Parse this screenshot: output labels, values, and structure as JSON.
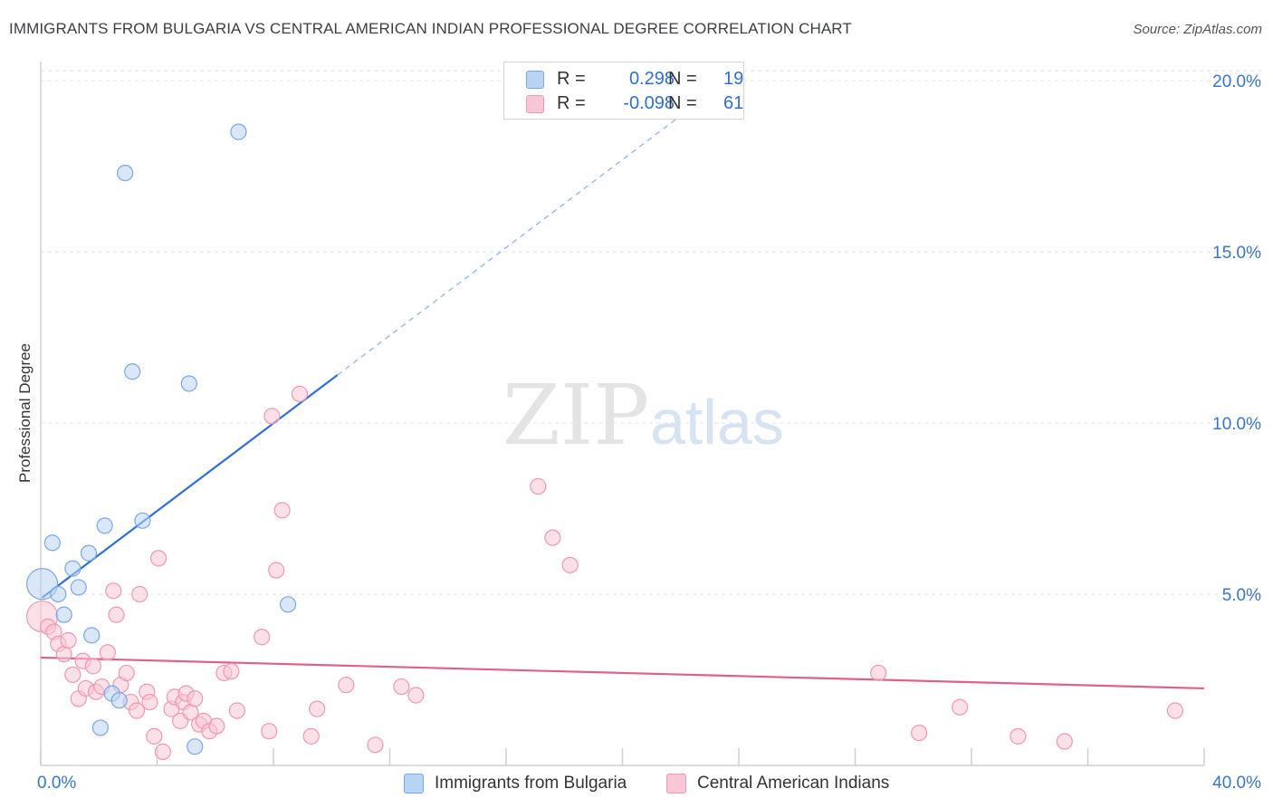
{
  "title": "IMMIGRANTS FROM BULGARIA VS CENTRAL AMERICAN INDIAN PROFESSIONAL DEGREE CORRELATION CHART",
  "source": "Source: ZipAtlas.com",
  "watermark": {
    "zip": "ZIP",
    "atlas": "atlas"
  },
  "legend": {
    "r_label": "R =",
    "n_label": "N =",
    "series1": {
      "r": "0.298",
      "n": "19"
    },
    "series2": {
      "r": "-0.098",
      "n": "61"
    }
  },
  "colors": {
    "blue_fill": "#b9d3f4",
    "blue_stroke": "#7aa7e6",
    "blue_line": "#2f6fd1",
    "pink_fill": "#f8c7d6",
    "pink_stroke": "#ee98b3",
    "pink_line": "#e0608a",
    "tick_text": "#3a75c9"
  },
  "chart_data": {
    "type": "scatter",
    "title": "IMMIGRANTS FROM BULGARIA VS CENTRAL AMERICAN INDIAN PROFESSIONAL DEGREE CORRELATION CHART",
    "xlabel": "",
    "ylabel": "Professional Degree",
    "xlim": [
      0,
      40
    ],
    "ylim": [
      0,
      20.5
    ],
    "x_tick_labels": [
      "0.0%",
      "40.0%"
    ],
    "y_ticks": [
      5,
      10,
      15,
      20
    ],
    "y_tick_labels": [
      "5.0%",
      "10.0%",
      "15.0%",
      "20.0%"
    ],
    "series": [
      {
        "name": "Immigrants from Bulgaria",
        "color": "blue",
        "trend": {
          "x0": 0.05,
          "y0": 4.9,
          "x1": 10.2,
          "y1": 11.4,
          "dash_to_x": 22.2,
          "dash_to_y": 19.1
        },
        "points": [
          {
            "x": 0.05,
            "y": 5.3,
            "big": true
          },
          {
            "x": 0.4,
            "y": 6.5
          },
          {
            "x": 0.6,
            "y": 5.0
          },
          {
            "x": 0.8,
            "y": 4.4
          },
          {
            "x": 1.1,
            "y": 5.75
          },
          {
            "x": 1.3,
            "y": 5.2
          },
          {
            "x": 1.65,
            "y": 6.2
          },
          {
            "x": 1.75,
            "y": 3.8
          },
          {
            "x": 2.05,
            "y": 1.1
          },
          {
            "x": 2.2,
            "y": 7.0
          },
          {
            "x": 2.45,
            "y": 2.1
          },
          {
            "x": 2.7,
            "y": 1.9
          },
          {
            "x": 2.9,
            "y": 17.3
          },
          {
            "x": 3.15,
            "y": 11.5
          },
          {
            "x": 3.5,
            "y": 7.15
          },
          {
            "x": 5.1,
            "y": 11.15
          },
          {
            "x": 5.3,
            "y": 0.55
          },
          {
            "x": 6.8,
            "y": 18.5
          },
          {
            "x": 8.5,
            "y": 4.7
          }
        ]
      },
      {
        "name": "Central American Indians",
        "color": "pink",
        "trend": {
          "x0": 0,
          "y0": 3.15,
          "x1": 40,
          "y1": 2.25
        },
        "points": [
          {
            "x": 0.05,
            "y": 4.35,
            "big": true
          },
          {
            "x": 0.25,
            "y": 4.05
          },
          {
            "x": 0.45,
            "y": 3.9
          },
          {
            "x": 0.6,
            "y": 3.55
          },
          {
            "x": 0.8,
            "y": 3.25
          },
          {
            "x": 0.95,
            "y": 3.65
          },
          {
            "x": 1.1,
            "y": 2.65
          },
          {
            "x": 1.3,
            "y": 1.95
          },
          {
            "x": 1.55,
            "y": 2.25
          },
          {
            "x": 1.45,
            "y": 3.05
          },
          {
            "x": 1.8,
            "y": 2.9
          },
          {
            "x": 1.9,
            "y": 2.15
          },
          {
            "x": 2.1,
            "y": 2.3
          },
          {
            "x": 2.3,
            "y": 3.3
          },
          {
            "x": 2.5,
            "y": 5.1
          },
          {
            "x": 2.6,
            "y": 4.4
          },
          {
            "x": 2.75,
            "y": 2.35
          },
          {
            "x": 2.95,
            "y": 2.7
          },
          {
            "x": 3.1,
            "y": 1.85
          },
          {
            "x": 3.3,
            "y": 1.6
          },
          {
            "x": 3.4,
            "y": 5.0
          },
          {
            "x": 3.65,
            "y": 2.15
          },
          {
            "x": 3.75,
            "y": 1.85
          },
          {
            "x": 3.9,
            "y": 0.85
          },
          {
            "x": 4.05,
            "y": 6.05
          },
          {
            "x": 4.2,
            "y": 0.4
          },
          {
            "x": 4.5,
            "y": 1.65
          },
          {
            "x": 4.6,
            "y": 2.0
          },
          {
            "x": 4.8,
            "y": 1.3
          },
          {
            "x": 4.9,
            "y": 1.85
          },
          {
            "x": 5.0,
            "y": 2.1
          },
          {
            "x": 5.15,
            "y": 1.55
          },
          {
            "x": 5.3,
            "y": 1.95
          },
          {
            "x": 5.45,
            "y": 1.2
          },
          {
            "x": 5.6,
            "y": 1.3
          },
          {
            "x": 5.8,
            "y": 1.0
          },
          {
            "x": 6.05,
            "y": 1.15
          },
          {
            "x": 6.3,
            "y": 2.7
          },
          {
            "x": 6.55,
            "y": 2.75
          },
          {
            "x": 6.75,
            "y": 1.6
          },
          {
            "x": 7.6,
            "y": 3.75
          },
          {
            "x": 7.85,
            "y": 1.0
          },
          {
            "x": 7.95,
            "y": 10.2
          },
          {
            "x": 8.1,
            "y": 5.7
          },
          {
            "x": 8.3,
            "y": 7.45
          },
          {
            "x": 9.3,
            "y": 0.85
          },
          {
            "x": 9.5,
            "y": 1.65
          },
          {
            "x": 8.9,
            "y": 10.85
          },
          {
            "x": 10.5,
            "y": 2.35
          },
          {
            "x": 11.5,
            "y": 0.6
          },
          {
            "x": 12.4,
            "y": 2.3
          },
          {
            "x": 12.9,
            "y": 2.05
          },
          {
            "x": 17.1,
            "y": 8.15
          },
          {
            "x": 17.6,
            "y": 6.65
          },
          {
            "x": 18.2,
            "y": 5.85
          },
          {
            "x": 28.8,
            "y": 2.7
          },
          {
            "x": 30.2,
            "y": 0.95
          },
          {
            "x": 31.6,
            "y": 1.7
          },
          {
            "x": 33.6,
            "y": 0.85
          },
          {
            "x": 35.2,
            "y": 0.7
          },
          {
            "x": 39.0,
            "y": 1.6
          }
        ]
      }
    ]
  }
}
